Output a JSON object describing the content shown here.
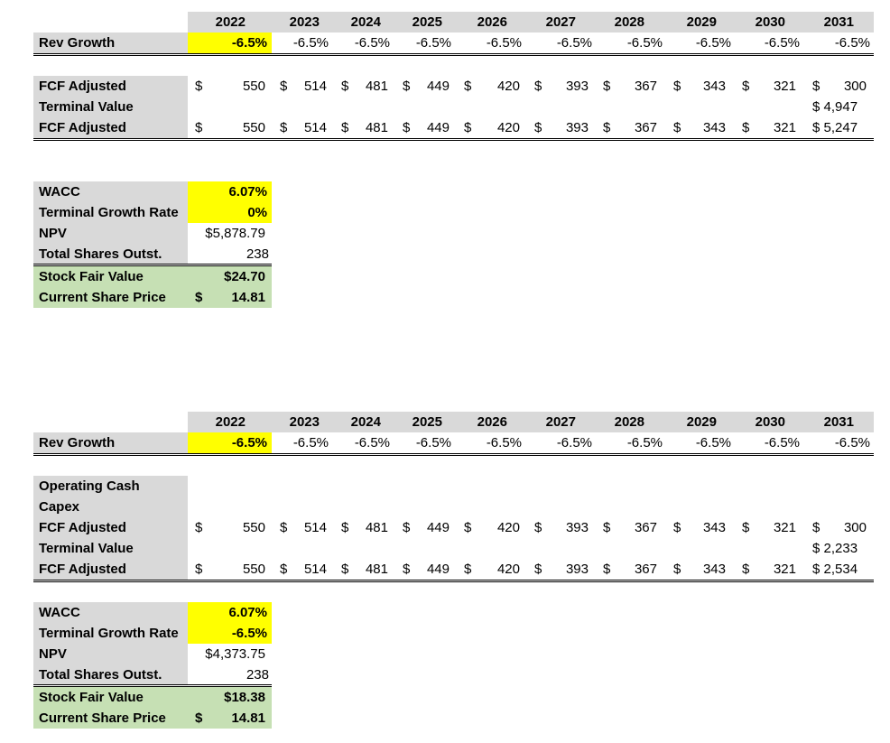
{
  "years": [
    "2022",
    "2023",
    "2024",
    "2025",
    "2026",
    "2027",
    "2028",
    "2029",
    "2030",
    "2031"
  ],
  "currency_symbol": "$",
  "model1": {
    "rev_growth": {
      "label": "Rev Growth",
      "values": [
        "-6.5%",
        "-6.5%",
        "-6.5%",
        "-6.5%",
        "-6.5%",
        "-6.5%",
        "-6.5%",
        "-6.5%",
        "-6.5%",
        "-6.5%"
      ]
    },
    "fcf_adjusted": {
      "label": "FCF Adjusted",
      "values": [
        "550",
        "514",
        "481",
        "449",
        "420",
        "393",
        "367",
        "343",
        "321",
        "300"
      ]
    },
    "terminal_value": {
      "label": "Terminal Value",
      "value": "$ 4,947"
    },
    "fcf_adjusted_total": {
      "label": "FCF Adjusted",
      "values": [
        "550",
        "514",
        "481",
        "449",
        "420",
        "393",
        "367",
        "343",
        "321"
      ],
      "last": "$ 5,247"
    },
    "summary": {
      "wacc_label": "WACC",
      "wacc": "6.07%",
      "tgr_label": "Terminal Growth Rate",
      "tgr": "0%",
      "npv_label": "NPV",
      "npv": "$5,878.79",
      "shares_label": "Total Shares Outst.",
      "shares": "238",
      "fair_label": "Stock Fair Value",
      "fair": "$24.70",
      "price_label": "Current Share Price",
      "price_symbol": "$",
      "price": "14.81"
    }
  },
  "model2": {
    "rev_growth": {
      "label": "Rev Growth",
      "values": [
        "-6.5%",
        "-6.5%",
        "-6.5%",
        "-6.5%",
        "-6.5%",
        "-6.5%",
        "-6.5%",
        "-6.5%",
        "-6.5%",
        "-6.5%"
      ]
    },
    "operating_cash_label": "Operating Cash",
    "capex_label": "Capex",
    "fcf_adjusted": {
      "label": "FCF Adjusted",
      "values": [
        "550",
        "514",
        "481",
        "449",
        "420",
        "393",
        "367",
        "343",
        "321",
        "300"
      ]
    },
    "terminal_value": {
      "label": "Terminal Value",
      "value": "$ 2,233"
    },
    "fcf_adjusted_total": {
      "label": "FCF Adjusted",
      "values": [
        "550",
        "514",
        "481",
        "449",
        "420",
        "393",
        "367",
        "343",
        "321"
      ],
      "last": "$ 2,534"
    },
    "summary": {
      "wacc_label": "WACC",
      "wacc": "6.07%",
      "tgr_label": "Terminal Growth Rate",
      "tgr": "-6.5%",
      "npv_label": "NPV",
      "npv": "$4,373.75",
      "shares_label": "Total Shares Outst.",
      "shares": "238",
      "fair_label": "Stock Fair Value",
      "fair": "$18.38",
      "price_label": "Current Share Price",
      "price_symbol": "$",
      "price": "14.81"
    }
  }
}
